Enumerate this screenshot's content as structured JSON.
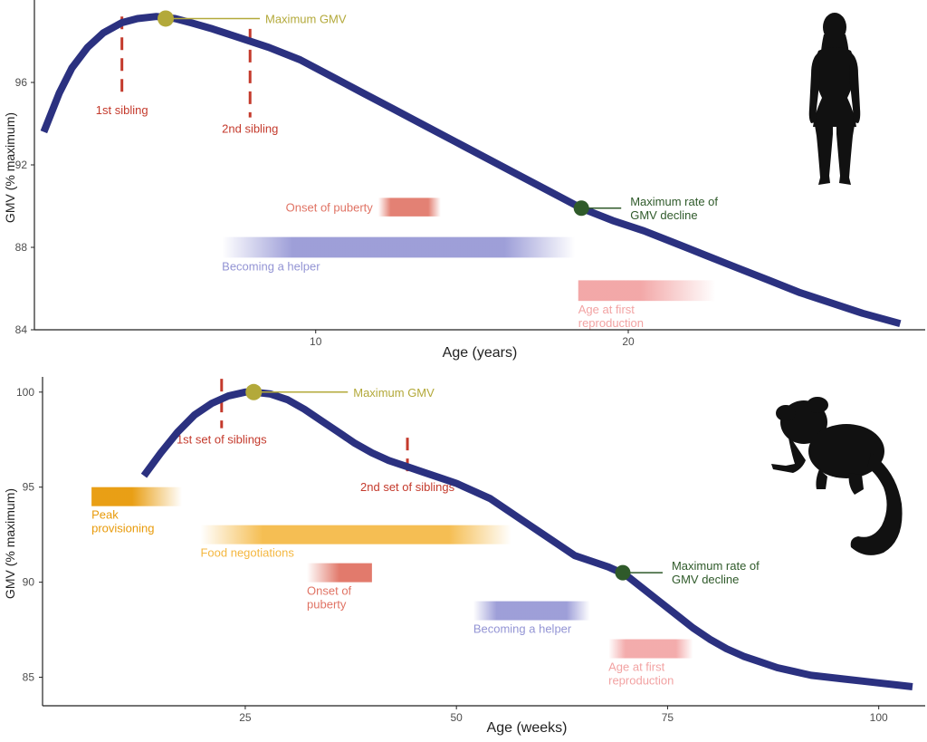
{
  "colors": {
    "curve": "#2b3180",
    "max_gmv": "#b3a93a",
    "max_decline": "#2f5a2a",
    "sibling": "#c43a2c",
    "puberty": "#e07364",
    "helper": "#9394d4",
    "reproduction": "#f2a3a3",
    "provisioning": "#e89a09",
    "food": "#f4b740",
    "axis": "#222222"
  },
  "icons": [
    "human-silhouette-icon",
    "marmoset-silhouette-icon"
  ],
  "chart_data": [
    {
      "type": "line",
      "xlabel": "Age (years)",
      "ylabel": "GMV (% maximum)",
      "xlim": [
        1,
        29.5
      ],
      "ylim": [
        84,
        100
      ],
      "xticks": [
        10,
        20
      ],
      "yticks": [
        84,
        88,
        92,
        96
      ],
      "series": [
        {
          "x": [
            1.3,
            1.8,
            2.2,
            2.7,
            3.2,
            3.8,
            4.3,
            4.9,
            5.5,
            6.0,
            6.7,
            7.5,
            8.5,
            9.5,
            10.5,
            11.5,
            12.5,
            13.5,
            14.5,
            15.5,
            16.5,
            17.5,
            18.5,
            19.5,
            20.5,
            21.5,
            22.5,
            23.5,
            24.5,
            25.5,
            26.5,
            27.5,
            28.7
          ],
          "y": [
            93.6,
            95.5,
            96.7,
            97.7,
            98.4,
            98.9,
            99.1,
            99.2,
            99.1,
            98.9,
            98.6,
            98.2,
            97.7,
            97.1,
            96.3,
            95.5,
            94.7,
            93.9,
            93.1,
            92.3,
            91.5,
            90.7,
            89.9,
            89.3,
            88.8,
            88.2,
            87.6,
            87.0,
            86.4,
            85.8,
            85.3,
            84.8,
            84.3
          ]
        }
      ],
      "annotations": {
        "max_gmv": {
          "x": 5.2,
          "y": 99.1,
          "label": "Maximum GMV"
        },
        "max_decline": {
          "x": 18.5,
          "y": 89.9,
          "label_lines": [
            "Maximum rate of",
            "GMV decline"
          ]
        },
        "siblings": [
          {
            "x": 3.8,
            "label": "1st sibling",
            "y_from": 99.2,
            "y_to": 95.2
          },
          {
            "x": 7.9,
            "label": "2nd sibling",
            "y_from": 98.6,
            "y_to": 94.3
          }
        ],
        "bands": [
          {
            "key": "puberty",
            "label_lines": [
              "Onset of puberty"
            ],
            "x_start": 12.0,
            "x_end": 14.0,
            "y_top": 90.4,
            "y_bottom": 89.5,
            "label_side": "left",
            "fade": "both"
          },
          {
            "key": "helper",
            "label_lines": [
              "Becoming a helper"
            ],
            "x_start": 7.0,
            "x_end": 18.3,
            "y_top": 88.5,
            "y_bottom": 87.5,
            "label_side": "below",
            "fade": "both"
          },
          {
            "key": "reproduction",
            "label_lines": [
              "Age at first",
              "reproduction"
            ],
            "x_start": 18.4,
            "x_end": 22.8,
            "y_top": 86.4,
            "y_bottom": 85.4,
            "label_side": "below",
            "fade": "right"
          }
        ]
      }
    },
    {
      "type": "line",
      "xlabel": "Age (weeks)",
      "ylabel": "GMV (% maximum)",
      "xlim": [
        1,
        105.5
      ],
      "ylim": [
        83.5,
        100.8
      ],
      "xticks": [
        25,
        50,
        75,
        100
      ],
      "yticks": [
        85,
        90,
        95,
        100
      ],
      "series": [
        {
          "x": [
            13,
            15,
            17,
            19,
            21,
            23,
            25,
            26,
            28,
            30,
            32,
            34,
            36,
            38,
            40,
            42,
            44,
            46,
            48,
            50,
            52,
            54,
            56,
            58,
            60,
            62,
            64,
            66,
            68,
            70,
            72,
            74,
            76,
            78,
            80,
            82,
            84,
            86,
            88,
            90,
            92,
            94,
            96,
            98,
            100,
            102,
            104
          ],
          "y": [
            95.6,
            96.8,
            97.9,
            98.8,
            99.4,
            99.8,
            100.0,
            100.0,
            99.9,
            99.6,
            99.1,
            98.5,
            97.9,
            97.3,
            96.8,
            96.4,
            96.1,
            95.8,
            95.5,
            95.2,
            94.8,
            94.4,
            93.8,
            93.2,
            92.6,
            92.0,
            91.4,
            91.1,
            90.8,
            90.4,
            89.7,
            89.0,
            88.3,
            87.6,
            87.0,
            86.5,
            86.1,
            85.8,
            85.5,
            85.3,
            85.1,
            85.0,
            84.9,
            84.8,
            84.7,
            84.6,
            84.5
          ]
        }
      ],
      "annotations": {
        "max_gmv": {
          "x": 26,
          "y": 100.0,
          "label": "Maximum GMV"
        },
        "max_decline": {
          "x": 69.7,
          "y": 90.5,
          "label_lines": [
            "Maximum rate of",
            "GMV decline"
          ]
        },
        "siblings": [
          {
            "x": 22.2,
            "label": "1st set of siblings",
            "y_from": 100.7,
            "y_to": 98.1
          },
          {
            "x": 44.2,
            "label": "2nd set of siblings",
            "y_from": 97.6,
            "y_to": 95.6
          }
        ],
        "bands": [
          {
            "key": "provisioning",
            "label_lines": [
              "Peak",
              "provisioning"
            ],
            "x_start": 6.8,
            "x_end": 17.5,
            "y_top": 95.0,
            "y_bottom": 94.0,
            "label_side": "below",
            "fade": "right"
          },
          {
            "key": "food",
            "label_lines": [
              "Food negotiations"
            ],
            "x_start": 19.7,
            "x_end": 56.5,
            "y_top": 93.0,
            "y_bottom": 92.0,
            "label_side": "below",
            "fade": "both"
          },
          {
            "key": "puberty",
            "label_lines": [
              "Onset of",
              "puberty"
            ],
            "x_start": 32.3,
            "x_end": 40.0,
            "y_top": 91.0,
            "y_bottom": 90.0,
            "label_side": "below",
            "fade": "left"
          },
          {
            "key": "helper",
            "label_lines": [
              "Becoming a helper"
            ],
            "x_start": 52.0,
            "x_end": 65.8,
            "y_top": 89.0,
            "y_bottom": 88.0,
            "label_side": "below",
            "fade": "both"
          },
          {
            "key": "reproduction",
            "label_lines": [
              "Age at first",
              "reproduction"
            ],
            "x_start": 68.0,
            "x_end": 78.0,
            "y_top": 87.0,
            "y_bottom": 86.0,
            "label_side": "below",
            "fade": "both"
          }
        ]
      }
    }
  ]
}
